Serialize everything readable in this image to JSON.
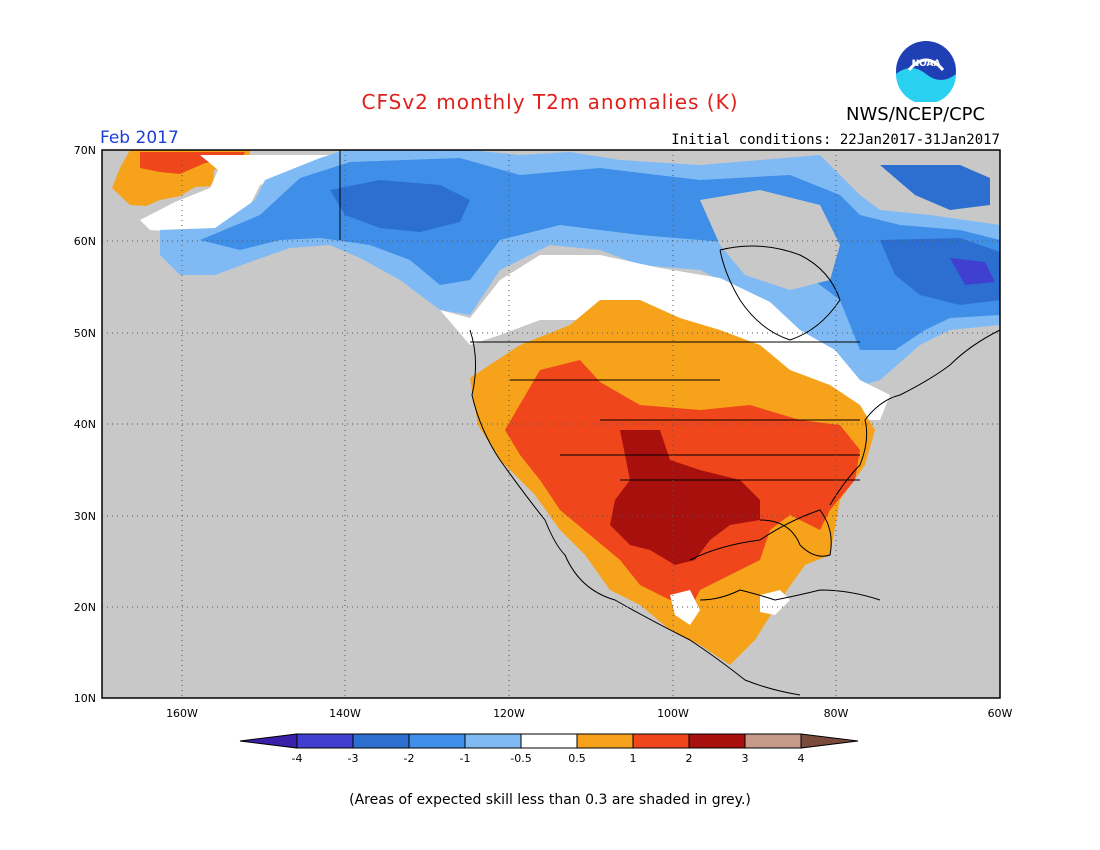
{
  "header": {
    "title": "CFSv2 monthly T2m anomalies (K)",
    "org": "NWS/NCEP/CPC",
    "logo_text": "NOAA",
    "month": "Feb 2017",
    "init_conditions": "Initial conditions: 22Jan2017-31Jan2017"
  },
  "axes": {
    "lat_labels": [
      "70N",
      "60N",
      "50N",
      "40N",
      "30N",
      "20N",
      "10N"
    ],
    "lon_labels": [
      "160W",
      "140W",
      "120W",
      "100W",
      "80W",
      "60W"
    ]
  },
  "colorbar": {
    "labels": [
      "-4",
      "-3",
      "-2",
      "-1",
      "-0.5",
      "0.5",
      "1",
      "2",
      "3",
      "4"
    ],
    "colors": [
      "#3a1fa8",
      "#4040d0",
      "#2c6fd0",
      "#3f8fe8",
      "#7fbaf5",
      "#ffffff",
      "#f7a21b",
      "#f0461c",
      "#a8100e",
      "#c59a88",
      "#7a4a3a"
    ]
  },
  "legend_colors": {
    "land_no_skill": "#c8c8c8",
    "ocean": "#c8c8c8"
  },
  "note": "(Areas of expected skill less than 0.3 are shaded in grey.)"
}
